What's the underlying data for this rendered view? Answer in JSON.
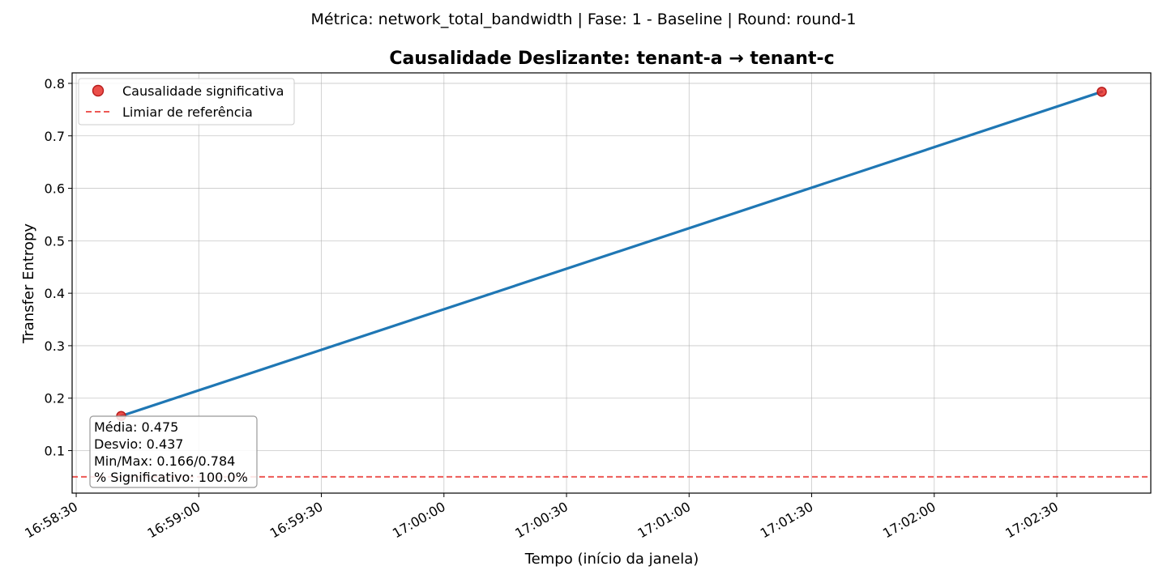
{
  "suptitle": "Métrica: network_total_bandwidth | Fase: 1 - Baseline | Round: round-1",
  "chart_data": {
    "type": "line",
    "title": "Causalidade Deslizante: tenant-a → tenant-c",
    "xlabel": "Tempo (início da janela)",
    "ylabel": "Transfer Entropy",
    "x_ticks": [
      "16:58:30",
      "16:59:00",
      "16:59:30",
      "17:00:00",
      "17:00:30",
      "17:01:00",
      "17:01:30",
      "17:02:00",
      "17:02:30"
    ],
    "y_ticks": [
      "0.1",
      "0.2",
      "0.3",
      "0.4",
      "0.5",
      "0.6",
      "0.7",
      "0.8"
    ],
    "xlim": [
      "16:58:29",
      "17:02:53"
    ],
    "ylim": [
      0.019,
      0.82
    ],
    "grid": true,
    "legend_position": "upper left",
    "series": [
      {
        "x": [
          "16:58:41",
          "17:02:41"
        ],
        "y": [
          0.166,
          0.784
        ],
        "color": "#1f77b4"
      }
    ],
    "significant_points": {
      "name": "Causalidade significativa",
      "x": [
        "16:58:41",
        "17:02:41"
      ],
      "y": [
        0.166,
        0.784
      ],
      "color": "#e8302a"
    },
    "reference_line": {
      "name": "Limiar de referência",
      "y": 0.05,
      "color": "#e8302a",
      "style": "dashed"
    },
    "stats_box": [
      "Média: 0.475",
      "Desvio: 0.437",
      "Min/Max: 0.166/0.784",
      "% Significativo: 100.0%"
    ]
  }
}
